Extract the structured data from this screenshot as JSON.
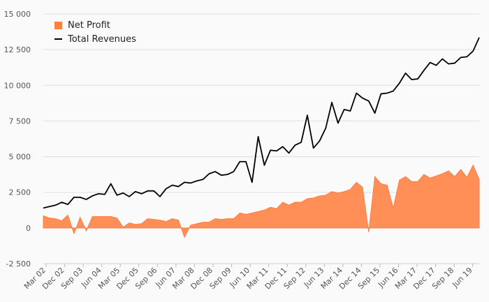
{
  "chart_data": {
    "type": "area",
    "ylim": [
      -2500,
      15000
    ],
    "yticks": [
      -2500,
      0,
      2500,
      5000,
      7500,
      10000,
      12500,
      15000
    ],
    "ytick_labels": [
      "-2 500",
      "0",
      "2 500",
      "5 000",
      "7 500",
      "10 000",
      "12 500",
      "15 000"
    ],
    "xtick_labels": [
      "Mar 02",
      "Dec 02",
      "Sep 03",
      "Jun 04",
      "Mar 05",
      "Dec 05",
      "Sep 06",
      "Jun 07",
      "Mar 08",
      "Dec 08",
      "Sep 09",
      "Jun 10",
      "Mar 11",
      "Dec 11",
      "Sep 12",
      "Jun 13",
      "Mar 14",
      "Dec 14",
      "Sep 15",
      "Jun 16",
      "Mar 17",
      "Dec 17",
      "Sep 18",
      "Jun 19"
    ],
    "legend_position": "top-left",
    "grid": true,
    "series": [
      {
        "name": "Net Profit",
        "type": "area",
        "color": "#ff7f3f",
        "values": [
          850,
          700,
          650,
          500,
          900,
          -400,
          750,
          -200,
          800,
          800,
          800,
          800,
          700,
          50,
          350,
          250,
          300,
          650,
          600,
          550,
          450,
          650,
          550,
          -650,
          200,
          300,
          400,
          400,
          650,
          600,
          650,
          650,
          1050,
          950,
          1050,
          1150,
          1250,
          1450,
          1350,
          1800,
          1600,
          1800,
          1800,
          2050,
          2100,
          2250,
          2300,
          2550,
          2450,
          2550,
          2700,
          3200,
          2850,
          -300,
          3600,
          3100,
          3000,
          1400,
          3350,
          3600,
          3250,
          3250,
          3750,
          3500,
          3650,
          3800,
          4000,
          3600,
          4100,
          3550,
          4400,
          3400
        ]
      },
      {
        "name": "Total Revenues",
        "type": "line",
        "color": "#000000",
        "values": [
          1400,
          1500,
          1600,
          1800,
          1650,
          2150,
          2150,
          2000,
          2250,
          2400,
          2350,
          3100,
          2300,
          2450,
          2200,
          2550,
          2400,
          2600,
          2600,
          2200,
          2750,
          3000,
          2900,
          3200,
          3150,
          3300,
          3400,
          3800,
          3950,
          3700,
          3750,
          3950,
          4650,
          4650,
          3200,
          6400,
          4400,
          5450,
          5400,
          5700,
          5250,
          5800,
          6000,
          7900,
          5600,
          6100,
          7000,
          8800,
          7350,
          8300,
          8200,
          9450,
          9100,
          8900,
          8050,
          9400,
          9450,
          9600,
          10150,
          10850,
          10400,
          10450,
          11050,
          11600,
          11400,
          11850,
          11500,
          11550,
          11950,
          12000,
          12400,
          13350
        ]
      }
    ]
  }
}
